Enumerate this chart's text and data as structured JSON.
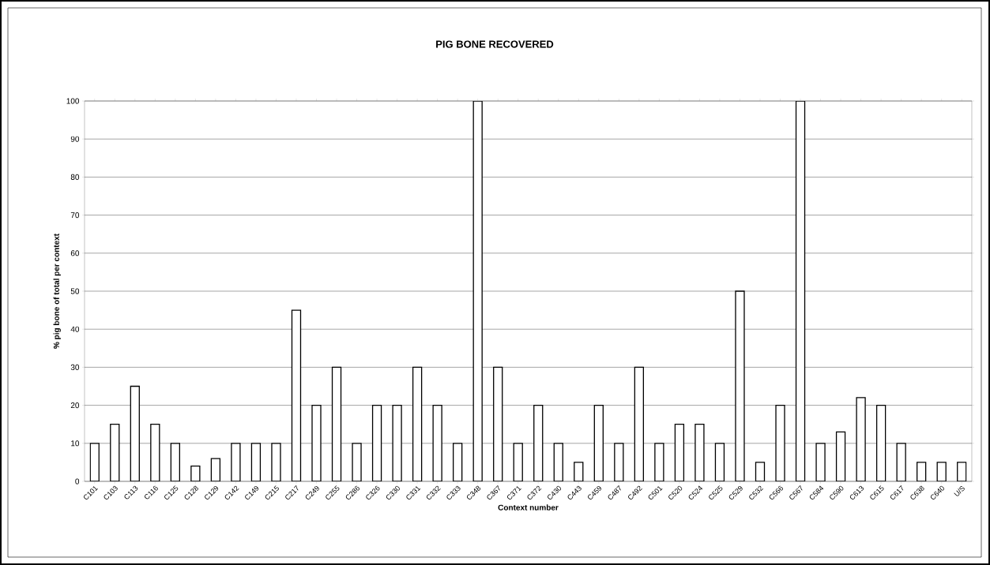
{
  "chart_data": {
    "type": "bar",
    "title": "PIG BONE RECOVERED",
    "xlabel": "Context number",
    "ylabel": "% pig bone of total per context",
    "categories": [
      "C101",
      "C103",
      "C113",
      "C116",
      "C125",
      "C128",
      "C129",
      "C142",
      "C149",
      "C215",
      "C217",
      "C249",
      "C255",
      "C286",
      "C326",
      "C330",
      "C331",
      "C332",
      "C333",
      "C348",
      "C367",
      "C371",
      "C372",
      "C430",
      "C443",
      "C459",
      "C487",
      "C492",
      "C501",
      "C520",
      "C524",
      "C525",
      "C529",
      "C532",
      "C566",
      "C567",
      "C584",
      "C590",
      "C613",
      "C615",
      "C617",
      "C638",
      "C640",
      "U/S"
    ],
    "values": [
      10,
      15,
      25,
      15,
      10,
      4,
      6,
      10,
      10,
      10,
      45,
      20,
      30,
      10,
      20,
      20,
      30,
      20,
      10,
      100,
      30,
      10,
      20,
      10,
      5,
      20,
      10,
      30,
      10,
      15,
      15,
      10,
      50,
      5,
      20,
      100,
      10,
      13,
      22,
      20,
      10,
      5,
      5,
      5
    ],
    "color": "#ffffff",
    "ylim": [
      0,
      100
    ],
    "yticks": [
      0,
      10,
      20,
      30,
      40,
      50,
      60,
      70,
      80,
      90,
      100
    ],
    "grid": "y"
  }
}
